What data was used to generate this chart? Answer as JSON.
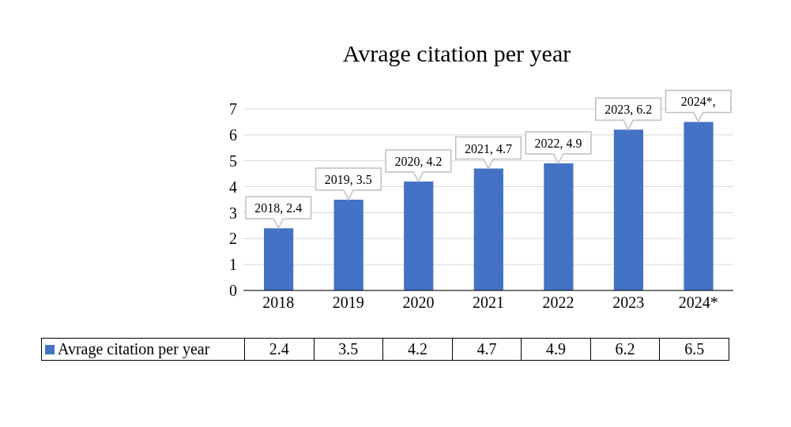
{
  "chart_data": {
    "type": "bar",
    "title": "Avrage citation per year",
    "categories": [
      "2018",
      "2019",
      "2020",
      "2021",
      "2022",
      "2023",
      "2024*"
    ],
    "series": [
      {
        "name": "Avrage citation per year",
        "color": "#4472c4",
        "values": [
          2.4,
          3.5,
          4.2,
          4.7,
          4.9,
          6.2,
          6.5
        ]
      }
    ],
    "ylim": [
      0,
      7
    ],
    "yticks": [
      0,
      1,
      2,
      3,
      4,
      5,
      6,
      7
    ],
    "grid": "y",
    "legend": "bottom",
    "data_labels": true,
    "annotations": [
      {
        "text": "2018, 2.4",
        "x": "2018",
        "y": 2.4
      },
      {
        "text": "2019, 3.5",
        "x": "2019",
        "y": 3.5
      },
      {
        "text": "2020, 4.2",
        "x": "2020",
        "y": 4.2
      },
      {
        "text": "2021, 4.7",
        "x": "2021",
        "y": 4.7
      },
      {
        "text": "2022, 4.9",
        "x": "2022",
        "y": 4.9
      },
      {
        "text": "2023, 6.2",
        "x": "2023",
        "y": 6.2
      },
      {
        "text": "2024*,",
        "x": "2024*",
        "y": 6.5
      }
    ]
  }
}
